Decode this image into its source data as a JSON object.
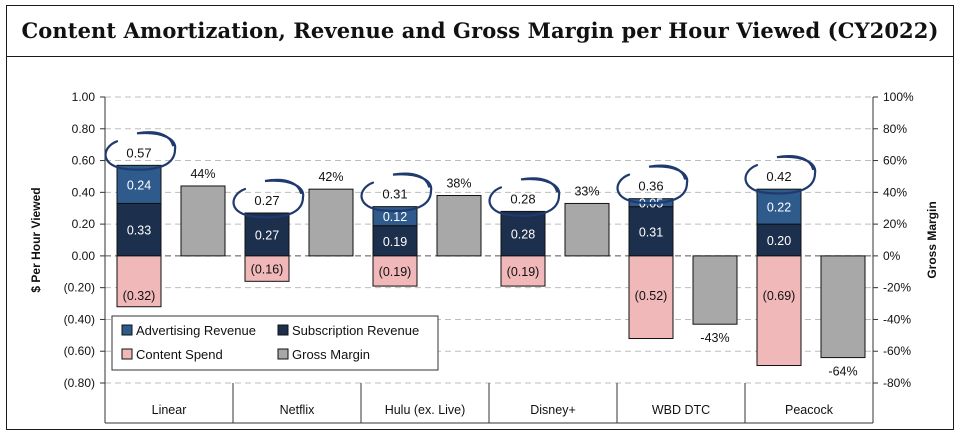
{
  "title": "Content Amortization, Revenue and Gross Margin per Hour Viewed (CY2022)",
  "chart_data": {
    "type": "bar",
    "categories": [
      "Linear",
      "Netflix",
      "Hulu (ex. Live)",
      "Disney+",
      "WBD DTC",
      "Peacock"
    ],
    "series": [
      {
        "name": "Advertising Revenue",
        "values": [
          0.24,
          0,
          0.12,
          0,
          0.05,
          0.22
        ],
        "color": "#2f5a8c",
        "labels": [
          "0.24",
          "",
          "0.12",
          "",
          "0.05",
          "0.22"
        ]
      },
      {
        "name": "Subscription Revenue",
        "values": [
          0.33,
          0.27,
          0.19,
          0.28,
          0.31,
          0.2
        ],
        "color": "#1c2f4d",
        "labels": [
          "0.33",
          "0.27",
          "0.19",
          "0.28",
          "0.31",
          "0.20"
        ]
      },
      {
        "name": "Content Spend",
        "values": [
          -0.32,
          -0.16,
          -0.19,
          -0.19,
          -0.52,
          -0.69
        ],
        "color": "#f0b8b8",
        "labels": [
          "(0.32)",
          "(0.16)",
          "(0.19)",
          "(0.19)",
          "(0.52)",
          "(0.69)"
        ]
      },
      {
        "name": "Gross Margin",
        "values": [
          44,
          42,
          38,
          33,
          -43,
          -64
        ],
        "color": "#a8a8a8",
        "labels": [
          "44%",
          "42%",
          "38%",
          "33%",
          "-43%",
          "-64%"
        ],
        "axis": "right"
      }
    ],
    "totals": [
      "0.57",
      "0.27",
      "0.31",
      "0.28",
      "0.36",
      "0.42"
    ],
    "ylabel": "$ Per Hour Viewed",
    "y2label": "Gross Margin",
    "ylim": [
      -0.8,
      1.0
    ],
    "y2lim": [
      -80,
      100
    ],
    "yticks": [
      "1.00",
      "0.80",
      "0.60",
      "0.40",
      "0.20",
      "0.00",
      "(0.20)",
      "(0.40)",
      "(0.60)",
      "(0.80)"
    ],
    "y2ticks": [
      "100%",
      "80%",
      "60%",
      "40%",
      "20%",
      "0%",
      "-20%",
      "-40%",
      "-60%",
      "-80%"
    ],
    "grid": true,
    "legend_placement": "bottom-left",
    "annotation_color": "#1f3a6e"
  }
}
